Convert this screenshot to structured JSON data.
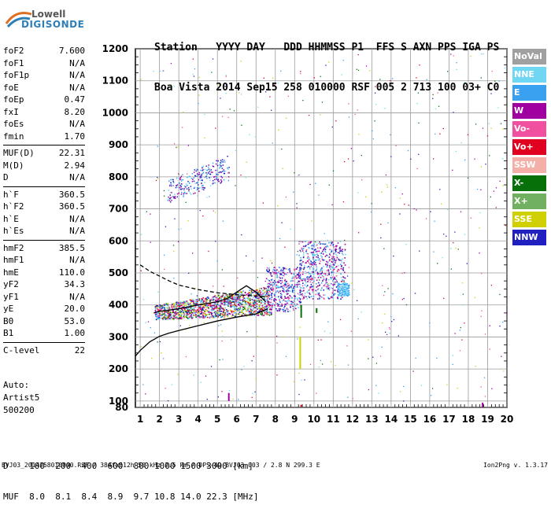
{
  "logo": {
    "top": "Lowell",
    "bottom": "DIGISONDE"
  },
  "header": {
    "line1": "Station   YYYY DAY   DDD HHMMSS P1  FFS S AXN PPS IGA PS",
    "line2": "Boa Vista 2014 Sep15 258 010000 RSF 005 2 713 100 03+ C0"
  },
  "params": [
    {
      "label": "foF2",
      "value": "7.600"
    },
    {
      "label": "foF1",
      "value": "N/A"
    },
    {
      "label": "foF1p",
      "value": "N/A"
    },
    {
      "label": "foE",
      "value": "N/A"
    },
    {
      "label": "foEp",
      "value": "0.47"
    },
    {
      "label": "fxI",
      "value": "8.20"
    },
    {
      "label": "foEs",
      "value": "N/A"
    },
    {
      "label": "fmin",
      "value": "1.70"
    },
    {
      "label": "MUF(D)",
      "value": "22.31"
    },
    {
      "label": "M(D)",
      "value": "2.94"
    },
    {
      "label": "D",
      "value": "N/A"
    },
    {
      "label": "h`F",
      "value": "360.5"
    },
    {
      "label": "h`F2",
      "value": "360.5"
    },
    {
      "label": "h`E",
      "value": "N/A"
    },
    {
      "label": "h`Es",
      "value": "N/A"
    },
    {
      "label": "hmF2",
      "value": "385.5"
    },
    {
      "label": "hmF1",
      "value": "N/A"
    },
    {
      "label": "hmE",
      "value": "110.0"
    },
    {
      "label": "yF2",
      "value": "34.3"
    },
    {
      "label": "yF1",
      "value": "N/A"
    },
    {
      "label": "yE",
      "value": "20.0"
    },
    {
      "label": "B0",
      "value": "53.0"
    },
    {
      "label": "B1",
      "value": "1.00"
    },
    {
      "label": "C-level",
      "value": "22"
    }
  ],
  "auto": {
    "line1": "Auto:",
    "line2": "Artist5",
    "line3": "500200"
  },
  "legend": [
    {
      "label": "NoVal",
      "color": "#a0a0a0"
    },
    {
      "label": "NNE",
      "color": "#6fd6f4"
    },
    {
      "label": "E",
      "color": "#3aa0f0"
    },
    {
      "label": "W",
      "color": "#a000a0"
    },
    {
      "label": "Vo-",
      "color": "#f050a0"
    },
    {
      "label": "Vo+",
      "color": "#e00020"
    },
    {
      "label": "SSW",
      "color": "#f4b0a8"
    },
    {
      "label": "X-",
      "color": "#087008"
    },
    {
      "label": "X+",
      "color": "#70b060"
    },
    {
      "label": "SSE",
      "color": "#d0d000"
    },
    {
      "label": "NNW",
      "color": "#2020c0"
    }
  ],
  "dmuf": {
    "line1": "D    100  200  400  600  800 1000 1500 3000 [km]",
    "line2": "MUF  8.0  8.1  8.4  8.9  9.7 10.8 14.0 22.3 [MHz]"
  },
  "footer": "BVJ03_2014258010000.RSF / 384fx512h 50 kHz 2.5 km / DPS-4D BVJ03 003 / 2.8 N 299.3 E",
  "version": "Ion2Png v. 1.3.17",
  "chart_data": {
    "type": "scatter",
    "xlim": [
      0.75,
      20
    ],
    "ylim": [
      80,
      1200
    ],
    "x_ticks": [
      1,
      2,
      3,
      4,
      5,
      6,
      7,
      8,
      9,
      10,
      11,
      12,
      13,
      14,
      15,
      16,
      17,
      18,
      19,
      20
    ],
    "y_ticks": [
      80,
      100,
      200,
      300,
      400,
      500,
      600,
      700,
      800,
      900,
      1000,
      1100,
      1200
    ],
    "grid": true,
    "curves": [
      {
        "name": "profile",
        "x": [
          0.75,
          1,
          1.5,
          2,
          2.5,
          3,
          4,
          5,
          6,
          7,
          7.6
        ],
        "y": [
          240,
          258,
          285,
          302,
          312,
          320,
          335,
          350,
          362,
          372,
          388
        ]
      },
      {
        "name": "trace",
        "x": [
          1.7,
          2,
          3,
          4,
          5,
          5.5,
          6,
          6.5,
          7,
          7.5
        ],
        "y": [
          375,
          380,
          388,
          400,
          410,
          420,
          440,
          460,
          440,
          410
        ]
      },
      {
        "name": "dashed",
        "x": [
          1,
          1.5,
          2,
          2.5,
          3,
          4,
          5,
          6,
          7,
          7.6
        ],
        "y": [
          525,
          505,
          490,
          475,
          462,
          448,
          438,
          432,
          428,
          425
        ]
      }
    ]
  }
}
